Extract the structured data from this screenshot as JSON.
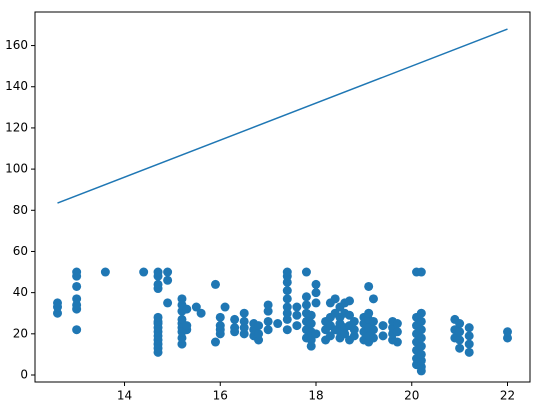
{
  "chart_data": {
    "type": "scatter",
    "xlim": [
      12.13,
      22.47
    ],
    "ylim": [
      -3.4,
      176.3
    ],
    "xticks": [
      14,
      16,
      18,
      20,
      22
    ],
    "yticks": [
      0,
      20,
      40,
      60,
      80,
      100,
      120,
      140,
      160
    ],
    "series": [
      {
        "type": "line",
        "color": "#1f77b4",
        "x": [
          12.6,
          22.0
        ],
        "values": [
          83.5,
          168
        ]
      },
      {
        "type": "scatter",
        "color": "#1f77b4",
        "x": [
          12.6,
          12.6,
          12.6,
          13.0,
          13.0,
          13.0,
          13.0,
          13.0,
          13.0,
          13.0,
          13.6,
          14.4,
          14.7,
          14.7,
          14.7,
          14.7,
          14.7,
          14.7,
          14.7,
          14.7,
          14.7,
          14.7,
          14.7,
          14.7,
          14.7,
          14.7,
          14.9,
          14.9,
          14.9,
          15.2,
          15.2,
          15.2,
          15.2,
          15.2,
          15.2,
          15.2,
          15.2,
          15.2,
          15.3,
          15.3,
          15.3,
          15.5,
          15.6,
          15.9,
          15.9,
          16.0,
          16.0,
          16.0,
          16.0,
          16.1,
          16.3,
          16.3,
          16.3,
          16.5,
          16.5,
          16.5,
          16.5,
          16.7,
          16.7,
          16.7,
          16.8,
          16.8,
          16.8,
          17.0,
          17.0,
          17.0,
          17.0,
          17.2,
          17.4,
          17.4,
          17.4,
          17.4,
          17.4,
          17.4,
          17.4,
          17.4,
          17.4,
          17.6,
          17.6,
          17.6,
          17.8,
          17.8,
          17.8,
          17.8,
          17.8,
          17.8,
          17.8,
          17.9,
          17.9,
          17.9,
          17.9,
          17.9,
          18.0,
          18.0,
          18.0,
          18.0,
          18.2,
          18.2,
          18.2,
          18.3,
          18.3,
          18.3,
          18.3,
          18.4,
          18.4,
          18.4,
          18.5,
          18.5,
          18.5,
          18.5,
          18.5,
          18.6,
          18.6,
          18.6,
          18.6,
          18.7,
          18.7,
          18.7,
          18.7,
          18.8,
          18.8,
          18.8,
          19.0,
          19.0,
          19.0,
          19.0,
          19.1,
          19.1,
          19.1,
          19.1,
          19.1,
          19.1,
          19.2,
          19.2,
          19.2,
          19.2,
          19.4,
          19.4,
          19.6,
          19.6,
          19.6,
          19.6,
          19.7,
          19.7,
          19.7,
          20.1,
          20.1,
          20.1,
          20.1,
          20.1,
          20.1,
          20.1,
          20.1,
          20.2,
          20.2,
          20.2,
          20.2,
          20.2,
          20.2,
          20.2,
          20.2,
          20.2,
          20.2,
          20.9,
          20.9,
          20.9,
          21.0,
          21.0,
          21.0,
          21.0,
          21.2,
          21.2,
          21.2,
          21.2,
          22.0,
          22.0
        ],
        "values": [
          30,
          33,
          35,
          22,
          32,
          34,
          37,
          43,
          48,
          50,
          50,
          50,
          11,
          13,
          15,
          17,
          19,
          21,
          23,
          25,
          26,
          28,
          42,
          44,
          48,
          50,
          35,
          46,
          50,
          15,
          18,
          21,
          23,
          25,
          27,
          31,
          34,
          37,
          22,
          24,
          32,
          33,
          30,
          16,
          44,
          20,
          22,
          24,
          28,
          33,
          21,
          23,
          27,
          20,
          23,
          26,
          30,
          19,
          22,
          25,
          17,
          20,
          24,
          22,
          26,
          31,
          34,
          25,
          22,
          27,
          30,
          33,
          37,
          41,
          45,
          48,
          50,
          24,
          29,
          33,
          18,
          22,
          26,
          30,
          34,
          38,
          50,
          14,
          17,
          21,
          25,
          29,
          20,
          35,
          40,
          44,
          17,
          22,
          26,
          19,
          24,
          28,
          35,
          22,
          30,
          37,
          18,
          21,
          25,
          28,
          33,
          20,
          23,
          30,
          35,
          17,
          24,
          29,
          36,
          19,
          22,
          26,
          17,
          21,
          25,
          28,
          16,
          19,
          23,
          27,
          30,
          43,
          18,
          22,
          26,
          37,
          19,
          24,
          17,
          20,
          23,
          26,
          16,
          21,
          25,
          5,
          8,
          12,
          16,
          20,
          24,
          28,
          50,
          2,
          4,
          7,
          10,
          14,
          18,
          22,
          26,
          30,
          50,
          18,
          22,
          27,
          13,
          17,
          21,
          25,
          11,
          15,
          19,
          23,
          18,
          21
        ]
      }
    ]
  }
}
